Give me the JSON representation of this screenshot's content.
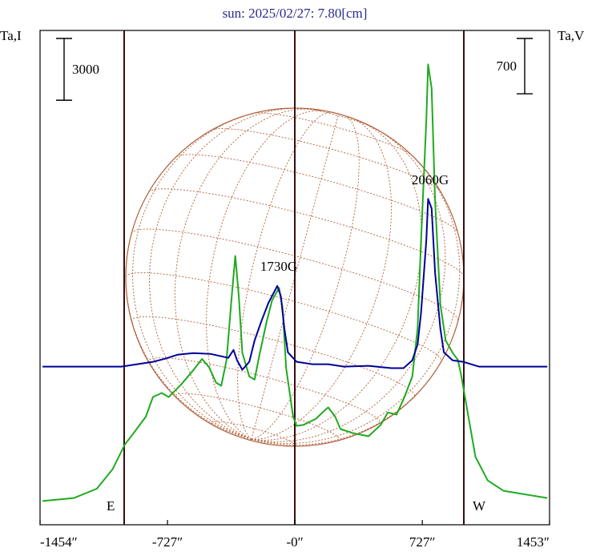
{
  "chart_data": {
    "type": "line",
    "title": "sun: 2025/02/27: 7.80[cm]",
    "xlim": [
      -1454,
      1453
    ],
    "xticks": [
      {
        "value": -1454,
        "label": "-1454″"
      },
      {
        "value": -727,
        "label": "-727″"
      },
      {
        "value": 0,
        "label": "-0″"
      },
      {
        "value": 727,
        "label": "727″"
      },
      {
        "value": 1453,
        "label": "1453″"
      }
    ],
    "ylim": [
      -1000,
      23000
    ],
    "y2lim": [
      -2000,
      4250
    ],
    "scale_bars": [
      {
        "label": "3000",
        "value": 3000
      },
      {
        "label": "700",
        "value": 700,
        "axis": "y2"
      }
    ],
    "series": [
      {
        "name": "Ta,I",
        "color": "#1faa1f",
        "x": [
          -1440,
          -1260,
          -1130,
          -1040,
          -970,
          -920,
          -850,
          -810,
          -760,
          -720,
          -650,
          -580,
          -530,
          -490,
          -450,
          -420,
          -390,
          -360,
          -340,
          -320,
          -300,
          -260,
          -230,
          -200,
          -160,
          -130,
          -90,
          -70,
          -50,
          -10,
          10,
          50,
          120,
          170,
          190,
          230,
          260,
          330,
          420,
          490,
          530,
          580,
          620,
          670,
          700,
          720,
          750,
          760,
          780,
          800,
          830,
          860,
          900,
          930,
          950,
          990,
          1030,
          1100,
          1190,
          1330,
          1440
        ],
        "values": [
          150,
          300,
          750,
          1700,
          2900,
          3450,
          4250,
          5200,
          5400,
          5200,
          5800,
          6500,
          7050,
          6650,
          5900,
          5750,
          7000,
          10100,
          12050,
          10100,
          7350,
          6200,
          6050,
          7350,
          8900,
          9900,
          10500,
          9500,
          6600,
          4250,
          3800,
          3850,
          4150,
          4550,
          4700,
          4250,
          3650,
          3450,
          3300,
          3850,
          4450,
          4350,
          5100,
          6200,
          8550,
          12800,
          18650,
          21350,
          20200,
          14750,
          9700,
          7950,
          7350,
          7000,
          6200,
          4250,
          2300,
          1150,
          650,
          450,
          300
        ]
      },
      {
        "name": "Ta,V",
        "color": "#000099",
        "axis": "y2",
        "x": [
          -1440,
          -990,
          -900,
          -810,
          -740,
          -670,
          -580,
          -480,
          -420,
          -380,
          -350,
          -330,
          -300,
          -260,
          -230,
          -190,
          -150,
          -100,
          -80,
          -60,
          -40,
          10,
          100,
          190,
          280,
          420,
          550,
          620,
          670,
          700,
          720,
          750,
          760,
          780,
          800,
          830,
          850,
          900,
          960,
          1050,
          1440
        ],
        "values": [
          0,
          0,
          30,
          60,
          100,
          150,
          170,
          160,
          130,
          110,
          210,
          80,
          -40,
          60,
          330,
          580,
          810,
          1020,
          890,
          480,
          180,
          60,
          30,
          30,
          0,
          10,
          -20,
          -20,
          80,
          280,
          680,
          1600,
          2120,
          2000,
          1190,
          480,
          180,
          80,
          60,
          0,
          0
        ]
      }
    ],
    "annotations": [
      "1730G",
      "2060G",
      "E",
      "W"
    ]
  }
}
